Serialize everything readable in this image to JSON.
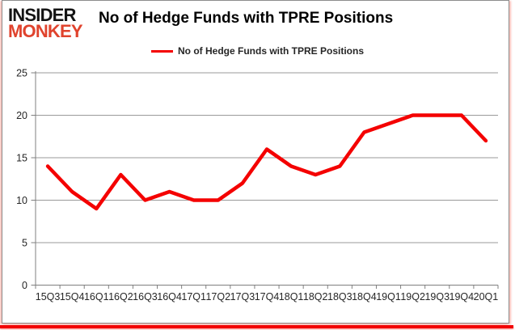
{
  "brand": {
    "line1": "INSIDER",
    "line2": "MONKEY"
  },
  "title": "No of Hedge Funds with TPRE Positions",
  "legend": {
    "label": "No of Hedge Funds with TPRE Positions"
  },
  "colors": {
    "line": "#f40000",
    "grid": "#9a9a9a",
    "axis": "#7f7f7f",
    "tick_label": "#262626",
    "brand_black": "#141414",
    "brand_red": "#e0432d",
    "bottom_bar": "#f20000"
  },
  "chart_data": {
    "type": "line",
    "title": "No of Hedge Funds with TPRE Positions",
    "categories": [
      "15Q3",
      "15Q4",
      "16Q1",
      "16Q2",
      "16Q3",
      "16Q4",
      "17Q1",
      "17Q2",
      "17Q3",
      "17Q4",
      "18Q1",
      "18Q2",
      "18Q3",
      "18Q4",
      "19Q1",
      "19Q2",
      "19Q3",
      "19Q4",
      "20Q1"
    ],
    "series": [
      {
        "name": "No of Hedge Funds with TPRE Positions",
        "color": "#f40000",
        "values": [
          14,
          11,
          9,
          13,
          10,
          11,
          10,
          10,
          12,
          16,
          14,
          13,
          14,
          18,
          19,
          20,
          20,
          20,
          17
        ]
      }
    ],
    "xlabel": "",
    "ylabel": "",
    "ylim": [
      0,
      25
    ],
    "yticks": [
      0,
      5,
      10,
      15,
      20,
      25
    ],
    "grid": true,
    "legend_position": "top"
  }
}
